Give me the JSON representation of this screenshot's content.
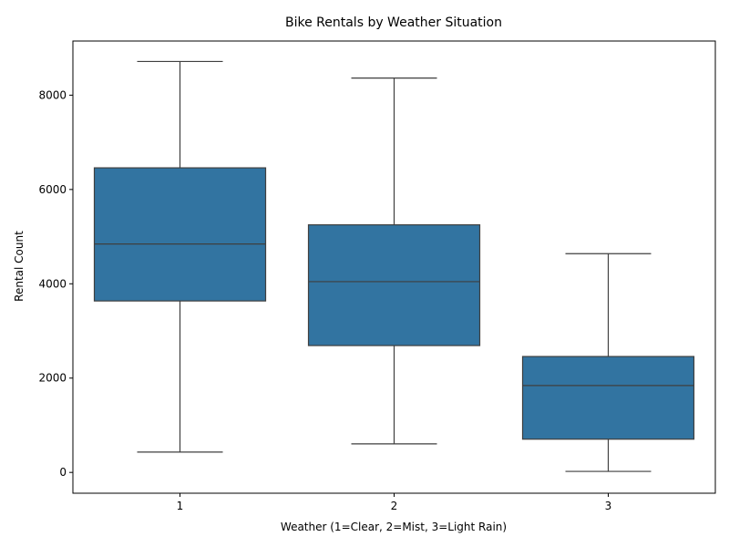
{
  "chart_data": {
    "type": "box",
    "title": "Bike Rentals by Weather Situation",
    "xlabel": "Weather (1=Clear, 2=Mist, 3=Light Rain)",
    "ylabel": "Rental Count",
    "categories": [
      "1",
      "2",
      "3"
    ],
    "boxes": [
      {
        "category": "1",
        "whisker_low": 431,
        "q1": 3636,
        "median": 4844,
        "q3": 6459,
        "whisker_high": 8714
      },
      {
        "category": "2",
        "whisker_low": 605,
        "q1": 2690,
        "median": 4045,
        "q3": 5250,
        "whisker_high": 8362
      },
      {
        "category": "3",
        "whisker_low": 22,
        "q1": 705,
        "median": 1843,
        "q3": 2458,
        "whisker_high": 4639
      }
    ],
    "ylim": [
      -441,
      9148
    ],
    "yticks": [
      0,
      2000,
      4000,
      6000,
      8000
    ],
    "grid": false,
    "colors": {
      "box_fill": "#3274a1",
      "line": "#3f3f3f",
      "axis": "#000000"
    }
  }
}
